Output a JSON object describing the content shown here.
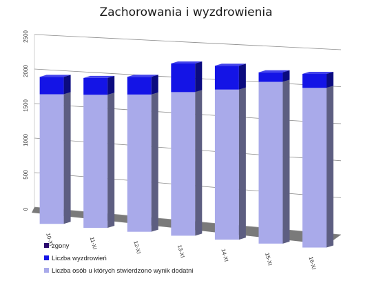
{
  "chart_data": {
    "type": "bar",
    "stacked": true,
    "three_d": true,
    "title": "Zachorowania i wyzdrowienia",
    "categories": [
      "10-XI",
      "11-XI",
      "12-XI",
      "13-XI",
      "14-XI",
      "15-XI",
      "16-XI"
    ],
    "series": [
      {
        "name": "Liczba osób u których stwierdzono wynik dodatni",
        "color": "#a9aaea",
        "values": [
          1870,
          1900,
          1940,
          2010,
          2080,
          2220,
          2170
        ]
      },
      {
        "name": "Liczba wyzdrowień",
        "color": "#1414e6",
        "values": [
          250,
          240,
          250,
          400,
          330,
          130,
          190
        ]
      },
      {
        "name": "zgony",
        "color": "#2a0a6e",
        "values": [
          0,
          0,
          0,
          0,
          0,
          0,
          0
        ]
      }
    ],
    "yticks": [
      0,
      500,
      1000,
      1500,
      2000,
      2500
    ],
    "ylim": [
      0,
      2500
    ],
    "grid": true,
    "legend_position": "bottom-left"
  }
}
